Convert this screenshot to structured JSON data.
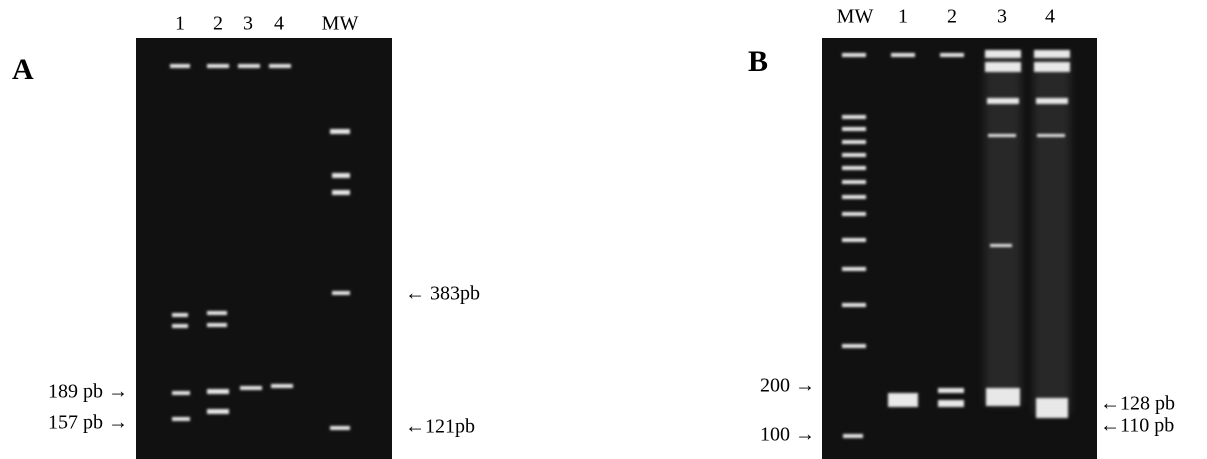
{
  "panels": [
    {
      "label": "A",
      "lanes": [
        "1",
        "2",
        "3",
        "4",
        "MW"
      ],
      "annotations_left": [
        "189 pb →",
        "157 pb →"
      ],
      "annotations_right": [
        "← 383pb",
        "←121pb"
      ]
    },
    {
      "label": "B",
      "lanes": [
        "MW",
        "1",
        "2",
        "3",
        "4"
      ],
      "annotations_left": [
        "200 →",
        "100 →"
      ],
      "annotations_right": [
        "←128 pb",
        "←110 pb"
      ]
    }
  ]
}
